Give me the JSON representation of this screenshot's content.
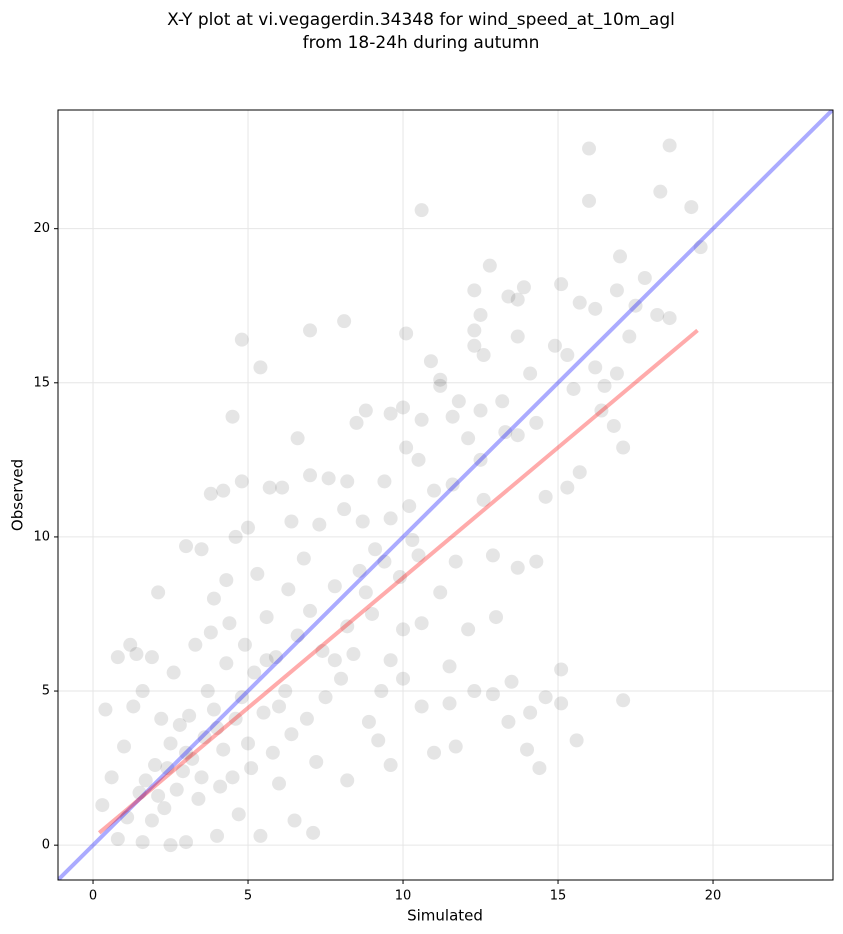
{
  "chart_data": {
    "type": "scatter",
    "title": [
      "X-Y plot at vi.vegagerdin.34348 for wind_speed_at_10m_agl",
      "from 18-24h during autumn"
    ],
    "x_label": "Simulated",
    "y_label": "Observed",
    "xlim": [
      -1.13,
      23.87
    ],
    "ylim": [
      -1.13,
      23.85
    ],
    "xticks": [
      0,
      5,
      10,
      15,
      20
    ],
    "yticks": [
      0,
      5,
      10,
      15,
      20
    ],
    "grid": true,
    "series": [
      {
        "color": "#000000",
        "alpha": 0.1,
        "x": [
          16,
          18.6,
          16,
          18.3,
          19.3,
          19.6,
          10.6,
          17,
          17.8,
          15.1,
          12.8,
          12.3,
          13.9,
          13.4,
          13.7,
          15.7,
          16.9,
          16.2,
          17.5,
          18.6,
          18.2,
          12.5,
          12.3,
          12.3,
          10.1,
          7,
          8.1,
          4.8,
          5.4,
          14.9,
          13.7,
          17.3,
          16.2,
          12.6,
          15.3,
          16.9,
          10.9,
          11.2,
          14.1,
          16.5,
          15.5,
          11.2,
          11.8,
          13.2,
          16.4,
          16.8,
          17.1,
          4.5,
          6.6,
          8.5,
          8.8,
          9.6,
          10,
          10.6,
          11.6,
          12.5,
          12.1,
          13.3,
          13.7,
          14.3,
          15.7,
          15.3,
          14.6,
          13.7,
          14.3,
          12.9,
          13,
          15.1,
          15.1,
          14.6,
          14.1,
          13.4,
          13.5,
          12.9,
          12.3,
          14.4,
          14,
          15.6,
          17.1,
          11.7,
          11,
          10.6,
          11.5,
          11.5,
          12.1,
          12.5,
          11.6,
          12.6,
          11,
          10.5,
          10.1,
          9.4,
          8.2,
          7.6,
          7,
          6.1,
          5.7,
          4.8,
          4.2,
          3.8,
          5,
          4.6,
          3,
          3.5,
          2.1,
          1.9,
          1.2,
          0.8,
          0.4,
          1.4,
          6.4,
          7.3,
          8.1,
          8.7,
          9.6,
          9.1,
          10.3,
          10.5,
          9.9,
          11.7,
          11.2,
          10.6,
          10,
          9.6,
          10,
          9.3,
          8.9,
          9.2,
          9.6,
          8.2,
          7.1,
          6.5,
          5.4,
          4,
          3,
          2.5,
          1.6,
          0.8,
          0.3,
          0.6,
          1,
          1.3,
          1.6,
          2.2,
          2.5,
          2.9,
          3.2,
          3.6,
          3.9,
          4.2,
          4.5,
          4.8,
          5.2,
          5.5,
          5.9,
          6.2,
          6.6,
          7,
          7.4,
          7.8,
          8.2,
          8.6,
          9,
          6.3,
          5.6,
          4.9,
          4.3,
          3.7,
          3.1,
          2.7,
          2.3,
          1.9,
          1.5,
          1.1,
          2,
          3.4,
          4.1,
          4.7,
          5.1,
          5.8,
          6.4,
          6.9,
          7.5,
          8,
          8.4,
          6,
          7.2,
          3.3,
          2.6,
          4.4,
          5.3,
          6.8,
          3.9,
          2.8,
          3.5,
          4,
          4.6,
          5,
          3,
          2.4,
          1.7,
          2.1,
          5.6,
          6,
          7.8,
          8.8,
          9.4,
          10.2,
          3.8,
          4.3
        ],
        "values": [
          22.6,
          22.7,
          20.9,
          21.2,
          20.7,
          19.4,
          20.6,
          19.1,
          18.4,
          18.2,
          18.8,
          18,
          18.1,
          17.8,
          17.7,
          17.6,
          18,
          17.4,
          17.5,
          17.1,
          17.2,
          17.2,
          16.7,
          16.2,
          16.6,
          16.7,
          17,
          16.4,
          15.5,
          16.2,
          16.5,
          16.5,
          15.5,
          15.9,
          15.9,
          15.3,
          15.7,
          15.1,
          15.3,
          14.9,
          14.8,
          14.9,
          14.4,
          14.4,
          14.1,
          13.6,
          12.9,
          13.9,
          13.2,
          13.7,
          14.1,
          14,
          14.2,
          13.8,
          13.9,
          14.1,
          13.2,
          13.4,
          13.3,
          13.7,
          12.1,
          11.6,
          11.3,
          9,
          9.2,
          9.4,
          7.4,
          5.7,
          4.6,
          4.8,
          4.3,
          4,
          5.3,
          4.9,
          5,
          2.5,
          3.1,
          3.4,
          4.7,
          3.2,
          3,
          4.5,
          4.6,
          5.8,
          7,
          12.5,
          11.7,
          11.2,
          11.5,
          12.5,
          12.9,
          11.8,
          11.8,
          11.9,
          12,
          11.6,
          11.6,
          11.8,
          11.5,
          11.4,
          10.3,
          10,
          9.7,
          9.6,
          8.2,
          6.1,
          6.5,
          6.1,
          4.4,
          6.2,
          10.5,
          10.4,
          10.9,
          10.5,
          10.6,
          9.6,
          9.9,
          9.4,
          8.7,
          9.2,
          8.2,
          7.2,
          7,
          6,
          5.4,
          5,
          4,
          3.4,
          2.6,
          2.1,
          0.4,
          0.8,
          0.3,
          0.3,
          0.1,
          0,
          0.1,
          0.2,
          1.3,
          2.2,
          3.2,
          4.5,
          5,
          4.1,
          3.3,
          2.4,
          2.8,
          3.5,
          4.4,
          3.1,
          2.2,
          4.8,
          5.6,
          4.3,
          6.1,
          5,
          6.8,
          7.6,
          6.3,
          8.4,
          7.1,
          8.9,
          7.5,
          8.3,
          7.4,
          6.5,
          5.9,
          5,
          4.2,
          1.8,
          1.2,
          0.8,
          1.7,
          0.9,
          2.6,
          1.5,
          1.9,
          1,
          2.5,
          3,
          3.6,
          4.1,
          4.8,
          5.4,
          6.2,
          2,
          2.7,
          6.5,
          5.6,
          7.2,
          8.8,
          9.3,
          8,
          3.9,
          2.2,
          3.8,
          4.1,
          3.3,
          3,
          2.5,
          2.1,
          1.6,
          6,
          4.5,
          6,
          8.2,
          9.2,
          11,
          6.9,
          8.6
        ]
      }
    ],
    "lines": [
      {
        "color": "#0000ff",
        "alpha": 0.33,
        "x": [
          -1.13,
          23.87
        ],
        "values": [
          -1.13,
          23.87
        ]
      },
      {
        "color": "#ff0000",
        "alpha": 0.33,
        "x": [
          0.2,
          19.5
        ],
        "values": [
          0.4,
          16.7
        ]
      }
    ]
  }
}
